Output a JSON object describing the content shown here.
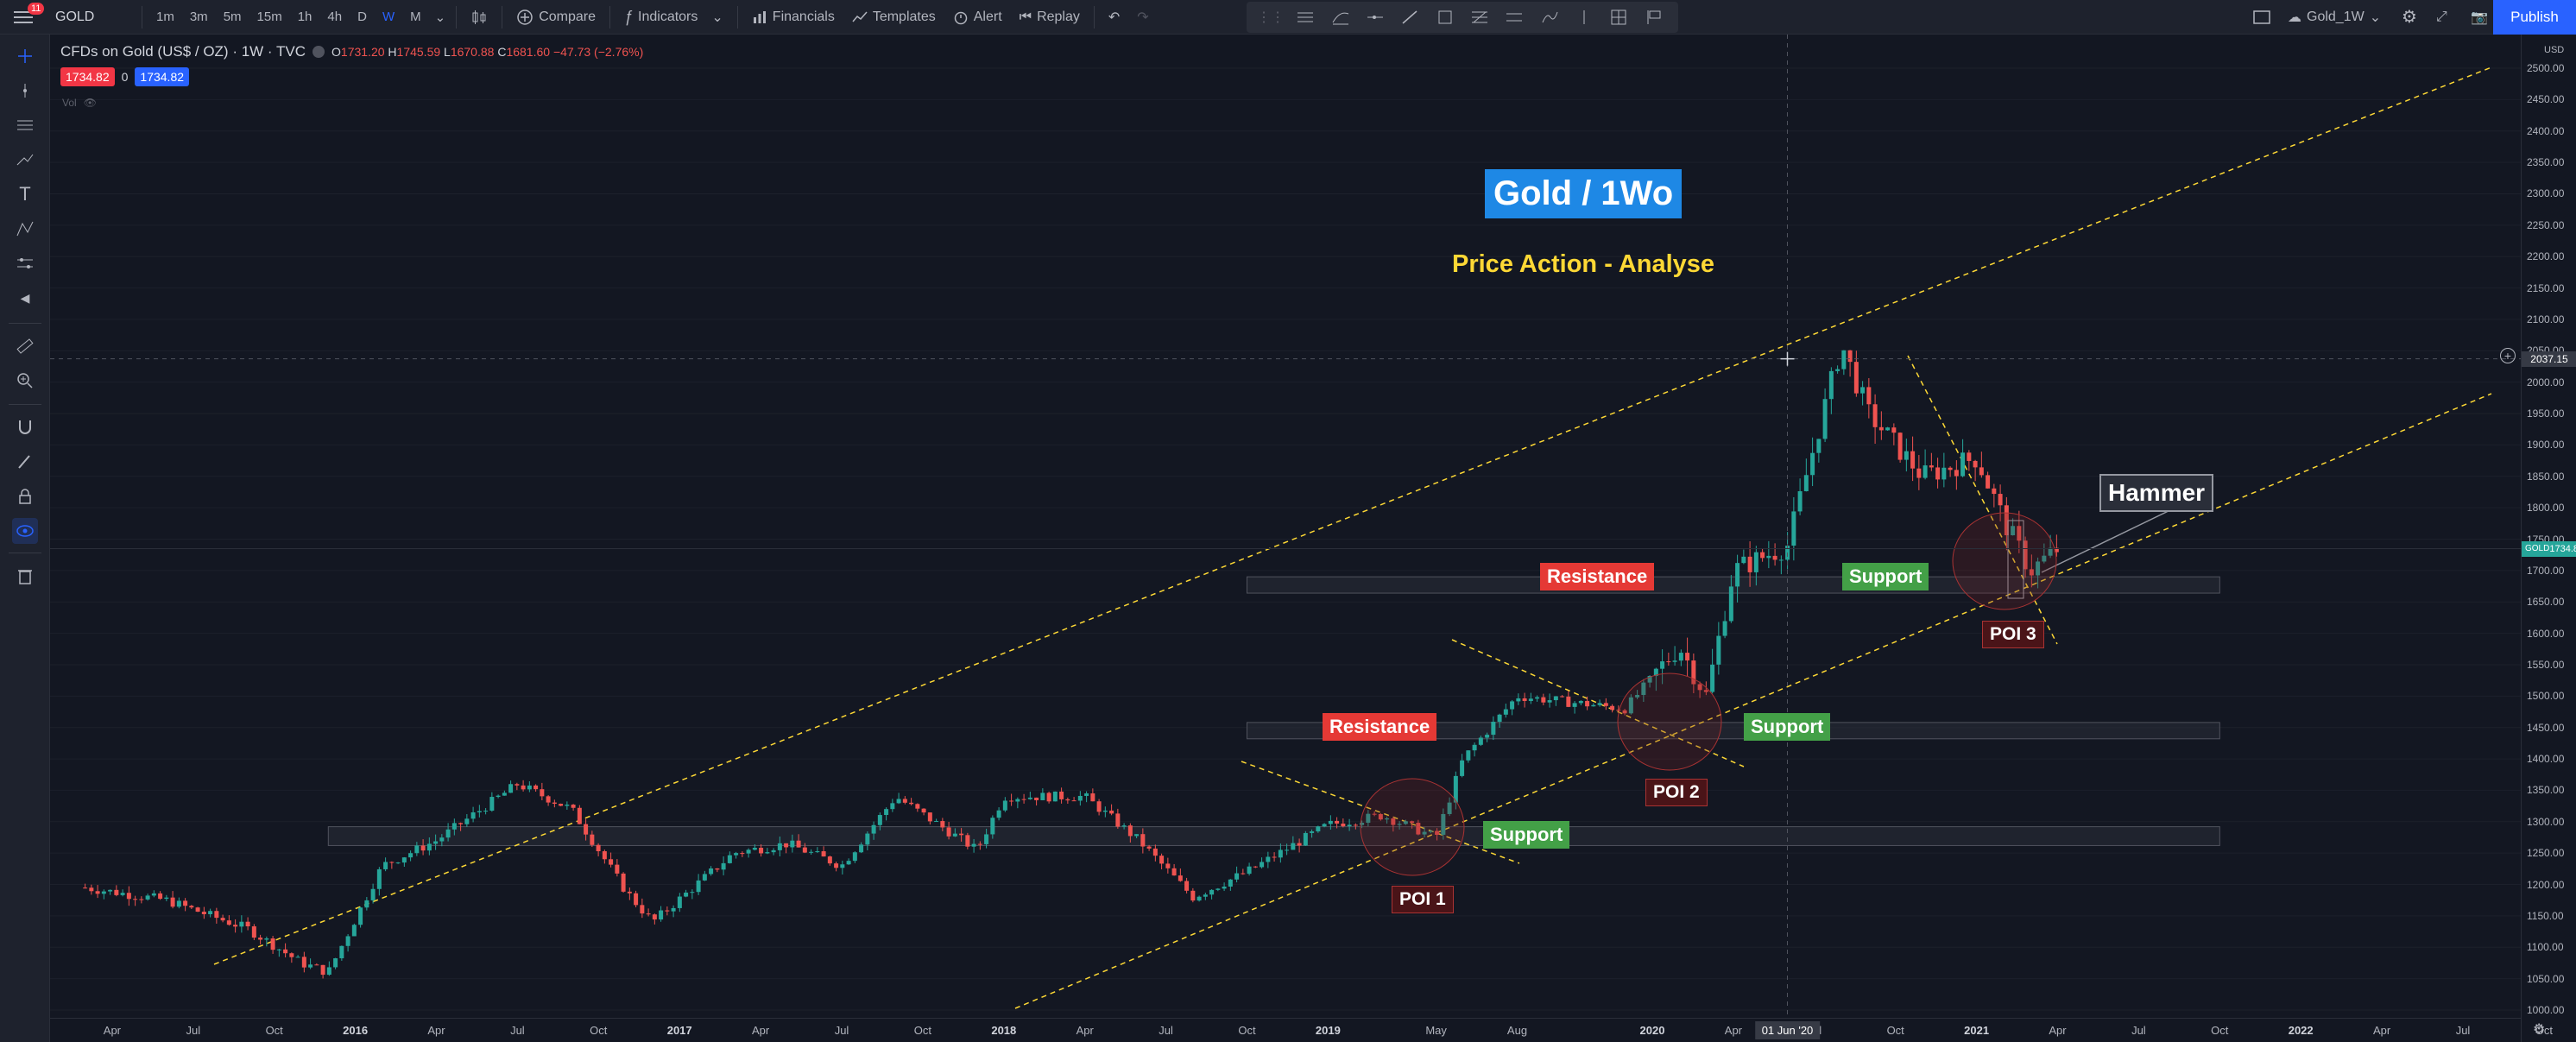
{
  "toolbar": {
    "notification_count": "11",
    "symbol": "GOLD",
    "timeframes": [
      "1m",
      "3m",
      "5m",
      "15m",
      "1h",
      "4h",
      "D",
      "W",
      "M"
    ],
    "active_timeframe": "W",
    "compare_label": "Compare",
    "indicators_label": "Indicators",
    "financials_label": "Financials",
    "templates_label": "Templates",
    "alert_label": "Alert",
    "replay_label": "Replay",
    "layout_name": "Gold_1W",
    "publish_label": "Publish"
  },
  "legend": {
    "title": "CFDs on Gold (US$ / OZ) · 1W · TVC",
    "open_key": "O",
    "open": "1731.20",
    "high_key": "H",
    "high": "1745.59",
    "low_key": "L",
    "low": "1670.88",
    "close_key": "C",
    "close": "1681.60",
    "change": "−47.73 (−2.76%)",
    "bid": "1734.82",
    "spread": "0",
    "ask": "1734.82",
    "vol_label": "Vol"
  },
  "price_axis": {
    "currency": "USD",
    "ticks": [
      "2500.00",
      "2450.00",
      "2400.00",
      "2350.00",
      "2300.00",
      "2250.00",
      "2200.00",
      "2150.00",
      "2100.00",
      "2050.00",
      "2000.00",
      "1950.00",
      "1900.00",
      "1850.00",
      "1800.00",
      "1750.00",
      "1700.00",
      "1650.00",
      "1600.00",
      "1550.00",
      "1500.00",
      "1450.00",
      "1400.00",
      "1350.00",
      "1300.00",
      "1250.00",
      "1200.00",
      "1150.00",
      "1100.00",
      "1050.00",
      "1000.00"
    ],
    "crosshair_price": "2037.15",
    "last_symbol": "GOLD",
    "last_price": "1734.82"
  },
  "time_axis": {
    "ticks": [
      "Apr",
      "Jul",
      "Oct",
      "2016",
      "Apr",
      "Jul",
      "Oct",
      "2017",
      "Apr",
      "Jul",
      "Oct",
      "2018",
      "Apr",
      "Jul",
      "Oct",
      "2019",
      "May",
      "Aug",
      "2020",
      "Apr",
      "Jul",
      "Oct",
      "2021",
      "Apr",
      "Jul",
      "Oct",
      "2022",
      "Apr",
      "Jul",
      "Oct"
    ],
    "bold_ticks": [
      "2016",
      "2017",
      "2018",
      "2019",
      "2020",
      "2021",
      "2022"
    ],
    "crosshair_date": "01 Jun '20"
  },
  "annotations": {
    "title": "Gold / 1Wo",
    "subtitle": "Price Action - Analyse",
    "resistance_1": "Resistance",
    "resistance_2": "Resistance",
    "support_1": "Support",
    "support_2": "Support",
    "support_3": "Support",
    "poi_1": "POI 1",
    "poi_2": "POI 2",
    "poi_3": "POI 3",
    "hammer": "Hammer"
  },
  "colors": {
    "up": "#26a69a",
    "down": "#ef5350",
    "accent": "#2962ff",
    "trendline": "#fdd835"
  },
  "chart_data": {
    "type": "candlestick",
    "symbol": "GOLD",
    "interval": "1W",
    "ylim": [
      1000,
      2500
    ],
    "close_path": [
      [
        "2015-03",
        1195
      ],
      [
        "2015-06",
        1175
      ],
      [
        "2015-09",
        1130
      ],
      [
        "2015-11",
        1075
      ],
      [
        "2015-12",
        1060
      ],
      [
        "2016-02",
        1230
      ],
      [
        "2016-04",
        1270
      ],
      [
        "2016-07",
        1360
      ],
      [
        "2016-09",
        1320
      ],
      [
        "2016-11",
        1190
      ],
      [
        "2016-12",
        1140
      ],
      [
        "2017-03",
        1250
      ],
      [
        "2017-05",
        1265
      ],
      [
        "2017-07",
        1230
      ],
      [
        "2017-09",
        1340
      ],
      [
        "2017-12",
        1255
      ],
      [
        "2018-01",
        1340
      ],
      [
        "2018-04",
        1340
      ],
      [
        "2018-06",
        1270
      ],
      [
        "2018-08",
        1180
      ],
      [
        "2018-10",
        1220
      ],
      [
        "2019-01",
        1295
      ],
      [
        "2019-03",
        1310
      ],
      [
        "2019-05",
        1275
      ],
      [
        "2019-06",
        1400
      ],
      [
        "2019-08",
        1500
      ],
      [
        "2019-10",
        1490
      ],
      [
        "2019-12",
        1480
      ],
      [
        "2020-02",
        1580
      ],
      [
        "2020-03",
        1500
      ],
      [
        "2020-04",
        1700
      ],
      [
        "2020-06",
        1740
      ],
      [
        "2020-08",
        2060
      ],
      [
        "2020-09",
        1950
      ],
      [
        "2020-11",
        1850
      ],
      [
        "2021-01",
        1880
      ],
      [
        "2021-02",
        1780
      ],
      [
        "2021-03",
        1700
      ],
      [
        "2021-04",
        1735
      ],
      [
        "2021-04",
        1682
      ]
    ]
  }
}
